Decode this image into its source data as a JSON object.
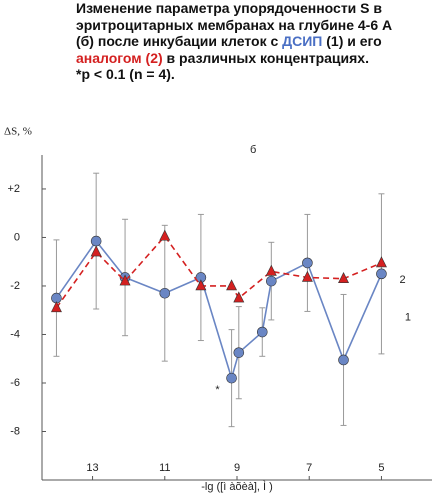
{
  "caption": [
    [
      {
        "text": "Изменение параметра упорядоченности S в"
      }
    ],
    [
      {
        "text": "эритроцитарных мембранах  на глубине  4-6 А"
      }
    ],
    [
      {
        "text": "(б) после инкубации клеток с "
      },
      {
        "text": "ДСИП",
        "color": "#4a6fc4"
      },
      {
        "text": " (1) и его"
      }
    ],
    [
      {
        "text": "аналогом (2)",
        "color": "#d42020"
      },
      {
        "text": " в различных концентрациях."
      }
    ],
    [
      {
        "text": "*p < 0.1 (n = 4)."
      }
    ]
  ],
  "chart_data": {
    "type": "line",
    "y_label": "ΔS, %",
    "x_label": "-lg ([ì àõèà], Ì )",
    "panel_label": "б",
    "annotations": [
      {
        "text": "2",
        "x": 4.5,
        "y": -1.75
      },
      {
        "text": "1",
        "x": 4.35,
        "y": -3.3
      },
      {
        "text": "*",
        "x": 9.6,
        "y": -6.3
      }
    ],
    "xlim": [
      14.4,
      3.6
    ],
    "ylim": [
      -10,
      3.4
    ],
    "xticks": [
      13,
      11,
      9,
      7,
      5
    ],
    "yticks": [
      {
        "value": 2,
        "label": "+2"
      },
      0,
      -2,
      -4,
      -6,
      -8
    ],
    "series": [
      {
        "name": "1",
        "color": "#6a86c4",
        "marker": "circle",
        "dashed": false,
        "x": [
          14.0,
          12.9,
          12.1,
          11.0,
          10.0,
          9.15,
          8.95,
          8.3,
          8.05,
          7.05,
          6.05,
          5.0
        ],
        "values": [
          -2.5,
          -0.15,
          -1.65,
          -2.3,
          -1.65,
          -5.8,
          -4.75,
          -3.9,
          -1.8,
          -1.05,
          -5.05,
          -1.5
        ],
        "errors": [
          2.4,
          2.8,
          2.4,
          2.8,
          2.6,
          2.0,
          1.9,
          1.0,
          1.6,
          2.0,
          2.7,
          3.3
        ]
      },
      {
        "name": "2",
        "color": "#d42020",
        "marker": "triangle",
        "dashed": true,
        "x": [
          14.0,
          12.9,
          12.1,
          11.0,
          10.0,
          9.15,
          8.95,
          8.05,
          7.05,
          6.05,
          5.0
        ],
        "values": [
          -2.9,
          -0.6,
          -1.8,
          0.05,
          -2.0,
          -2.0,
          -2.5,
          -1.4,
          -1.65,
          -1.7,
          -1.05
        ]
      }
    ]
  }
}
